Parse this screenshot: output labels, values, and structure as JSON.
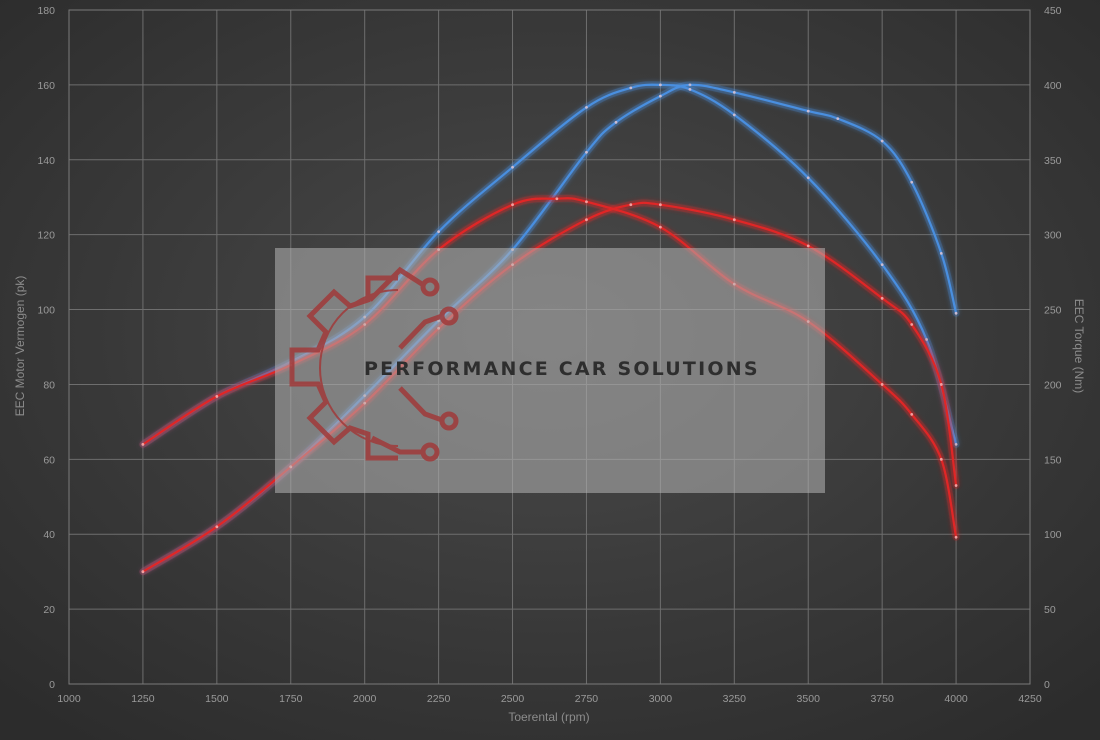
{
  "chart_data": {
    "type": "line",
    "title": "",
    "xlabel": "Toerental (rpm)",
    "ylabel_left": "EEC Motor Vermogen (pk)",
    "ylabel_right": "EEC Torque (Nm)",
    "xlim": [
      1000,
      4250
    ],
    "xticks": [
      1000,
      1250,
      1500,
      1750,
      2000,
      2250,
      2500,
      2750,
      3000,
      3250,
      3500,
      3750,
      4000,
      4250
    ],
    "ylim_left": [
      0,
      180
    ],
    "yticks_left": [
      0,
      20,
      40,
      60,
      80,
      100,
      120,
      140,
      160,
      180
    ],
    "ylim_right": [
      0,
      450
    ],
    "yticks_right": [
      0,
      50,
      100,
      150,
      200,
      250,
      300,
      350,
      400,
      450
    ],
    "grid": true,
    "series": [
      {
        "axis": "left",
        "color": "#4a8fe0",
        "x": [
          1250,
          1500,
          1750,
          2000,
          2250,
          2500,
          2750,
          2850,
          3000,
          3100,
          3250,
          3500,
          3600,
          3750,
          3850,
          3950,
          4000
        ],
        "values": [
          30,
          42,
          58,
          77,
          97,
          116,
          142,
          150,
          157,
          160,
          158,
          153,
          151,
          145,
          134,
          115,
          99
        ]
      },
      {
        "axis": "right",
        "color": "#4a8fe0",
        "x": [
          1250,
          1500,
          1750,
          2000,
          2250,
          2500,
          2750,
          2900,
          3000,
          3100,
          3250,
          3500,
          3750,
          3900,
          4000
        ],
        "values": [
          160,
          192,
          215,
          245,
          302,
          345,
          385,
          398,
          400,
          397,
          380,
          338,
          280,
          230,
          160
        ]
      },
      {
        "axis": "left",
        "color": "#e02828",
        "x": [
          1250,
          1500,
          1750,
          2000,
          2250,
          2500,
          2750,
          2900,
          3000,
          3250,
          3500,
          3750,
          3850,
          3950,
          4000
        ],
        "values": [
          30,
          42,
          58,
          75,
          95,
          112,
          124,
          128,
          128,
          124,
          117,
          103,
          96,
          80,
          53
        ]
      },
      {
        "axis": "right",
        "color": "#e02828",
        "x": [
          1250,
          1500,
          1750,
          2000,
          2250,
          2500,
          2650,
          2750,
          3000,
          3250,
          3500,
          3750,
          3850,
          3950,
          4000
        ],
        "values": [
          160,
          192,
          213,
          240,
          290,
          320,
          324,
          322,
          305,
          267,
          242,
          200,
          180,
          150,
          98
        ]
      }
    ]
  },
  "watermark": {
    "text": "PERFORMANCE CAR SOLUTIONS",
    "logo": "gear-circuit-logo",
    "logo_color": "#a03a3a"
  }
}
